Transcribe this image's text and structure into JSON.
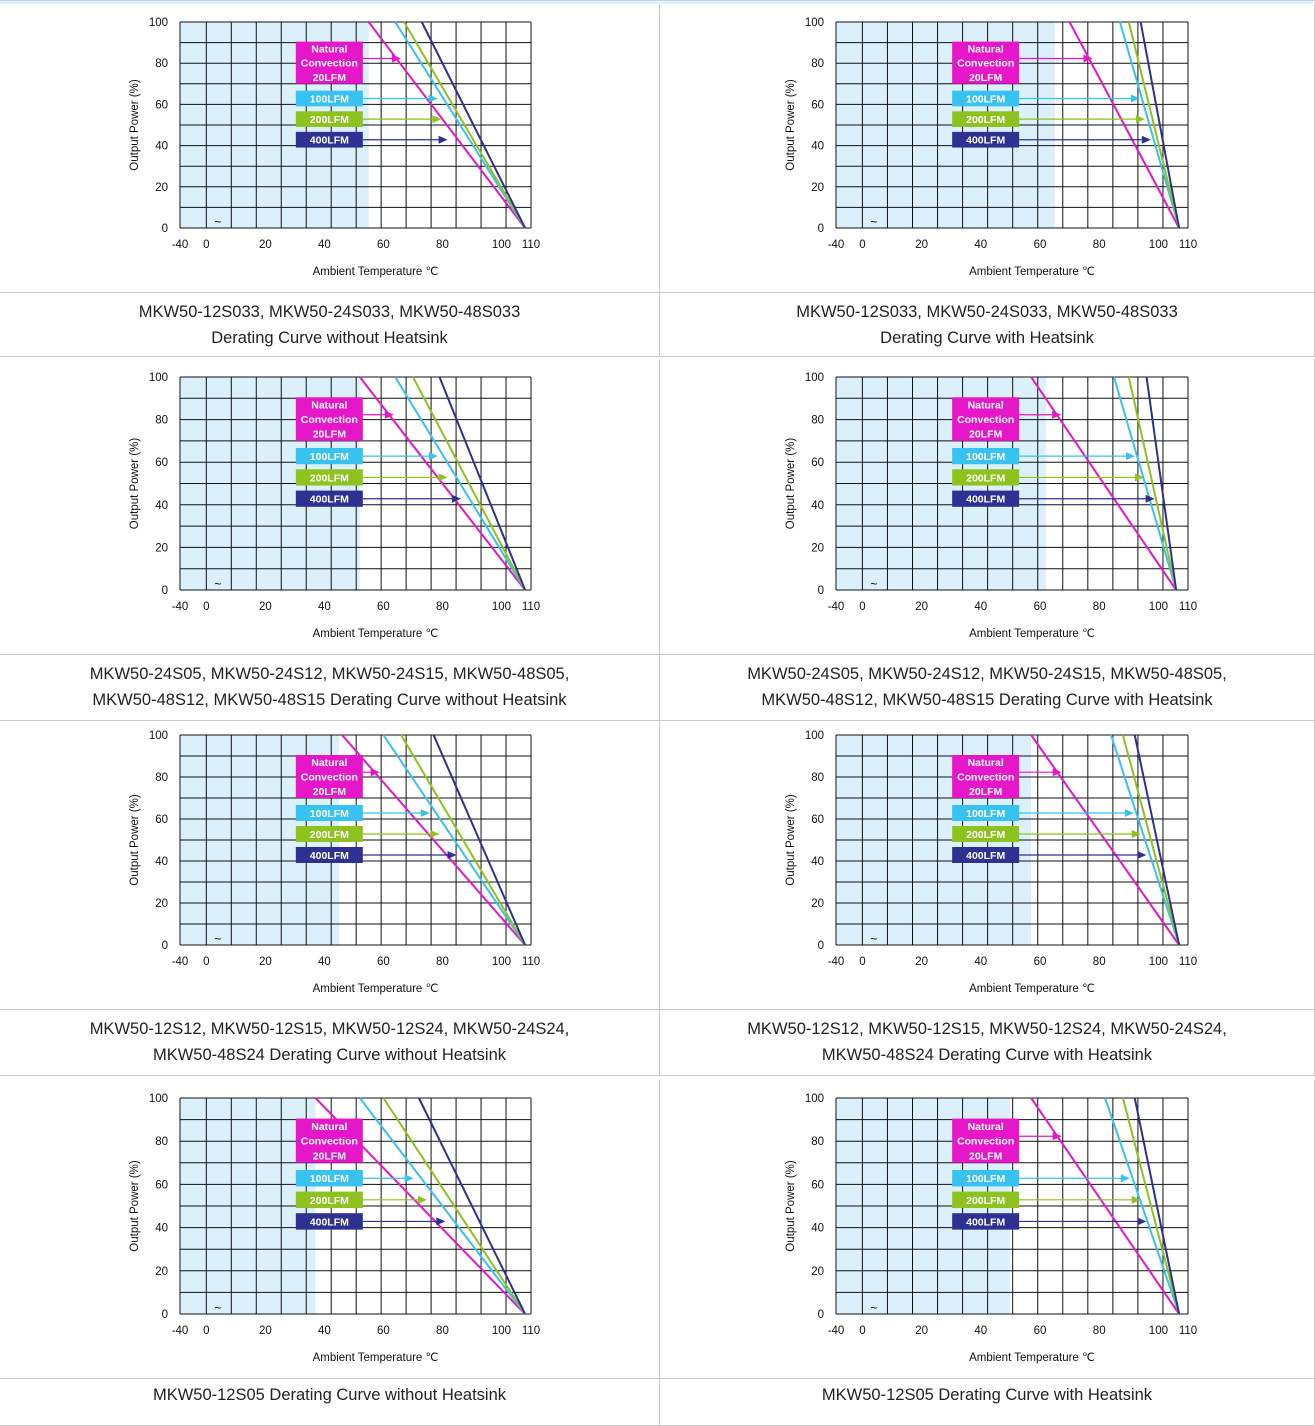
{
  "colors": {
    "natural": "#e616c9",
    "lfm100": "#38c2ef",
    "lfm200": "#8dc21f",
    "lfm400": "#2e3192",
    "shade": "#dcf0fb",
    "grid": "#111111"
  },
  "legend_labels": [
    "Natural Convection 20LFM",
    "100LFM",
    "200LFM",
    "400LFM"
  ],
  "legend_lines": {
    "natural": [
      "Natural",
      "Convection",
      "20LFM"
    ],
    "lfm100": [
      "100LFM"
    ],
    "lfm200": [
      "200LFM"
    ],
    "lfm400": [
      "400LFM"
    ]
  },
  "axis": {
    "xlabel": "Ambient Temperature ℃",
    "ylabel": "Output Power  (%)",
    "xticks": [
      "-40",
      "0",
      "20",
      "40",
      "60",
      "80",
      "100",
      "110"
    ],
    "yticks": [
      "0",
      "20",
      "40",
      "60",
      "80",
      "100"
    ],
    "break_mark": "~"
  },
  "captions": [
    [
      "MKW50-12S033, MKW50-24S033, MKW50-48S033",
      "Derating Curve without Heatsink"
    ],
    [
      "MKW50-12S033, MKW50-24S033, MKW50-48S033",
      "Derating Curve with Heatsink"
    ],
    [
      "MKW50-24S05, MKW50-24S12, MKW50-24S15, MKW50-48S05,",
      "MKW50-48S12, MKW50-48S15 Derating Curve without Heatsink"
    ],
    [
      "MKW50-24S05, MKW50-24S12, MKW50-24S15, MKW50-48S05,",
      "MKW50-48S12, MKW50-48S15 Derating Curve with Heatsink"
    ],
    [
      "MKW50-12S12, MKW50-12S15, MKW50-12S24, MKW50-24S24,",
      "MKW50-48S24 Derating Curve without Heatsink"
    ],
    [
      "MKW50-12S12, MKW50-12S15, MKW50-12S24, MKW50-24S24,",
      "MKW50-48S24 Derating Curve with Heatsink"
    ],
    [
      "MKW50-12S05 Derating Curve without Heatsink"
    ],
    [
      "MKW50-12S05 Derating Curve with Heatsink"
    ]
  ],
  "chart_data": [
    {
      "type": "line",
      "xlim": [
        -40,
        110
      ],
      "ylim": [
        0,
        100
      ],
      "shade_to": 55,
      "grid": true,
      "series": [
        {
          "name": "Natural Convection 20LFM",
          "x": [
            55,
            108
          ],
          "y": [
            100,
            0
          ]
        },
        {
          "name": "100LFM",
          "x": [
            64,
            108
          ],
          "y": [
            100,
            0
          ]
        },
        {
          "name": "200LFM",
          "x": [
            67,
            108
          ],
          "y": [
            100,
            0
          ]
        },
        {
          "name": "400LFM",
          "x": [
            73,
            108
          ],
          "y": [
            100,
            0
          ]
        }
      ]
    },
    {
      "type": "line",
      "xlim": [
        -40,
        110
      ],
      "ylim": [
        0,
        100
      ],
      "shade_to": 65,
      "grid": true,
      "series": [
        {
          "name": "Natural Convection 20LFM",
          "x": [
            70,
            107
          ],
          "y": [
            100,
            0
          ]
        },
        {
          "name": "100LFM",
          "x": [
            87,
            107
          ],
          "y": [
            100,
            0
          ]
        },
        {
          "name": "200LFM",
          "x": [
            90,
            107
          ],
          "y": [
            100,
            0
          ]
        },
        {
          "name": "400LFM",
          "x": [
            94,
            107
          ],
          "y": [
            100,
            0
          ]
        }
      ]
    },
    {
      "type": "line",
      "xlim": [
        -40,
        110
      ],
      "ylim": [
        0,
        100
      ],
      "shade_to": 52,
      "grid": true,
      "series": [
        {
          "name": "Natural Convection 20LFM",
          "x": [
            52,
            108
          ],
          "y": [
            100,
            0
          ]
        },
        {
          "name": "100LFM",
          "x": [
            64,
            108
          ],
          "y": [
            100,
            0
          ]
        },
        {
          "name": "200LFM",
          "x": [
            70,
            108
          ],
          "y": [
            100,
            0
          ]
        },
        {
          "name": "400LFM",
          "x": [
            79,
            108
          ],
          "y": [
            100,
            0
          ]
        }
      ]
    },
    {
      "type": "line",
      "xlim": [
        -40,
        110
      ],
      "ylim": [
        0,
        100
      ],
      "shade_to": 62,
      "grid": true,
      "series": [
        {
          "name": "Natural Convection 20LFM",
          "x": [
            57,
            106
          ],
          "y": [
            100,
            0
          ]
        },
        {
          "name": "100LFM",
          "x": [
            85,
            106
          ],
          "y": [
            100,
            0
          ]
        },
        {
          "name": "200LFM",
          "x": [
            90,
            106
          ],
          "y": [
            100,
            0
          ]
        },
        {
          "name": "400LFM",
          "x": [
            96,
            106
          ],
          "y": [
            100,
            0
          ]
        }
      ]
    },
    {
      "type": "line",
      "xlim": [
        -40,
        110
      ],
      "ylim": [
        0,
        100
      ],
      "shade_to": 45,
      "grid": true,
      "series": [
        {
          "name": "Natural Convection 20LFM",
          "x": [
            46,
            108
          ],
          "y": [
            100,
            0
          ]
        },
        {
          "name": "100LFM",
          "x": [
            60,
            108
          ],
          "y": [
            100,
            0
          ]
        },
        {
          "name": "200LFM",
          "x": [
            66,
            108
          ],
          "y": [
            100,
            0
          ]
        },
        {
          "name": "400LFM",
          "x": [
            77,
            108
          ],
          "y": [
            100,
            0
          ]
        }
      ]
    },
    {
      "type": "line",
      "xlim": [
        -40,
        110
      ],
      "ylim": [
        0,
        100
      ],
      "shade_to": 57,
      "grid": true,
      "series": [
        {
          "name": "Natural Convection 20LFM",
          "x": [
            57,
            107
          ],
          "y": [
            100,
            0
          ]
        },
        {
          "name": "100LFM",
          "x": [
            84,
            107
          ],
          "y": [
            100,
            0
          ]
        },
        {
          "name": "200LFM",
          "x": [
            88,
            107
          ],
          "y": [
            100,
            0
          ]
        },
        {
          "name": "400LFM",
          "x": [
            92,
            107
          ],
          "y": [
            100,
            0
          ]
        }
      ]
    },
    {
      "type": "line",
      "xlim": [
        -40,
        110
      ],
      "ylim": [
        0,
        100
      ],
      "shade_to": 37,
      "grid": true,
      "series": [
        {
          "name": "Natural Convection 20LFM",
          "x": [
            37,
            108
          ],
          "y": [
            100,
            0
          ]
        },
        {
          "name": "100LFM",
          "x": [
            52,
            108
          ],
          "y": [
            100,
            0
          ]
        },
        {
          "name": "200LFM",
          "x": [
            60,
            108
          ],
          "y": [
            100,
            0
          ]
        },
        {
          "name": "400LFM",
          "x": [
            72,
            108
          ],
          "y": [
            100,
            0
          ]
        }
      ]
    },
    {
      "type": "line",
      "xlim": [
        -40,
        110
      ],
      "ylim": [
        0,
        100
      ],
      "shade_to": 50,
      "grid": true,
      "series": [
        {
          "name": "Natural Convection 20LFM",
          "x": [
            57,
            107
          ],
          "y": [
            100,
            0
          ]
        },
        {
          "name": "100LFM",
          "x": [
            82,
            107
          ],
          "y": [
            100,
            0
          ]
        },
        {
          "name": "200LFM",
          "x": [
            88,
            107
          ],
          "y": [
            100,
            0
          ]
        },
        {
          "name": "400LFM",
          "x": [
            92,
            107
          ],
          "y": [
            100,
            0
          ]
        }
      ]
    }
  ]
}
